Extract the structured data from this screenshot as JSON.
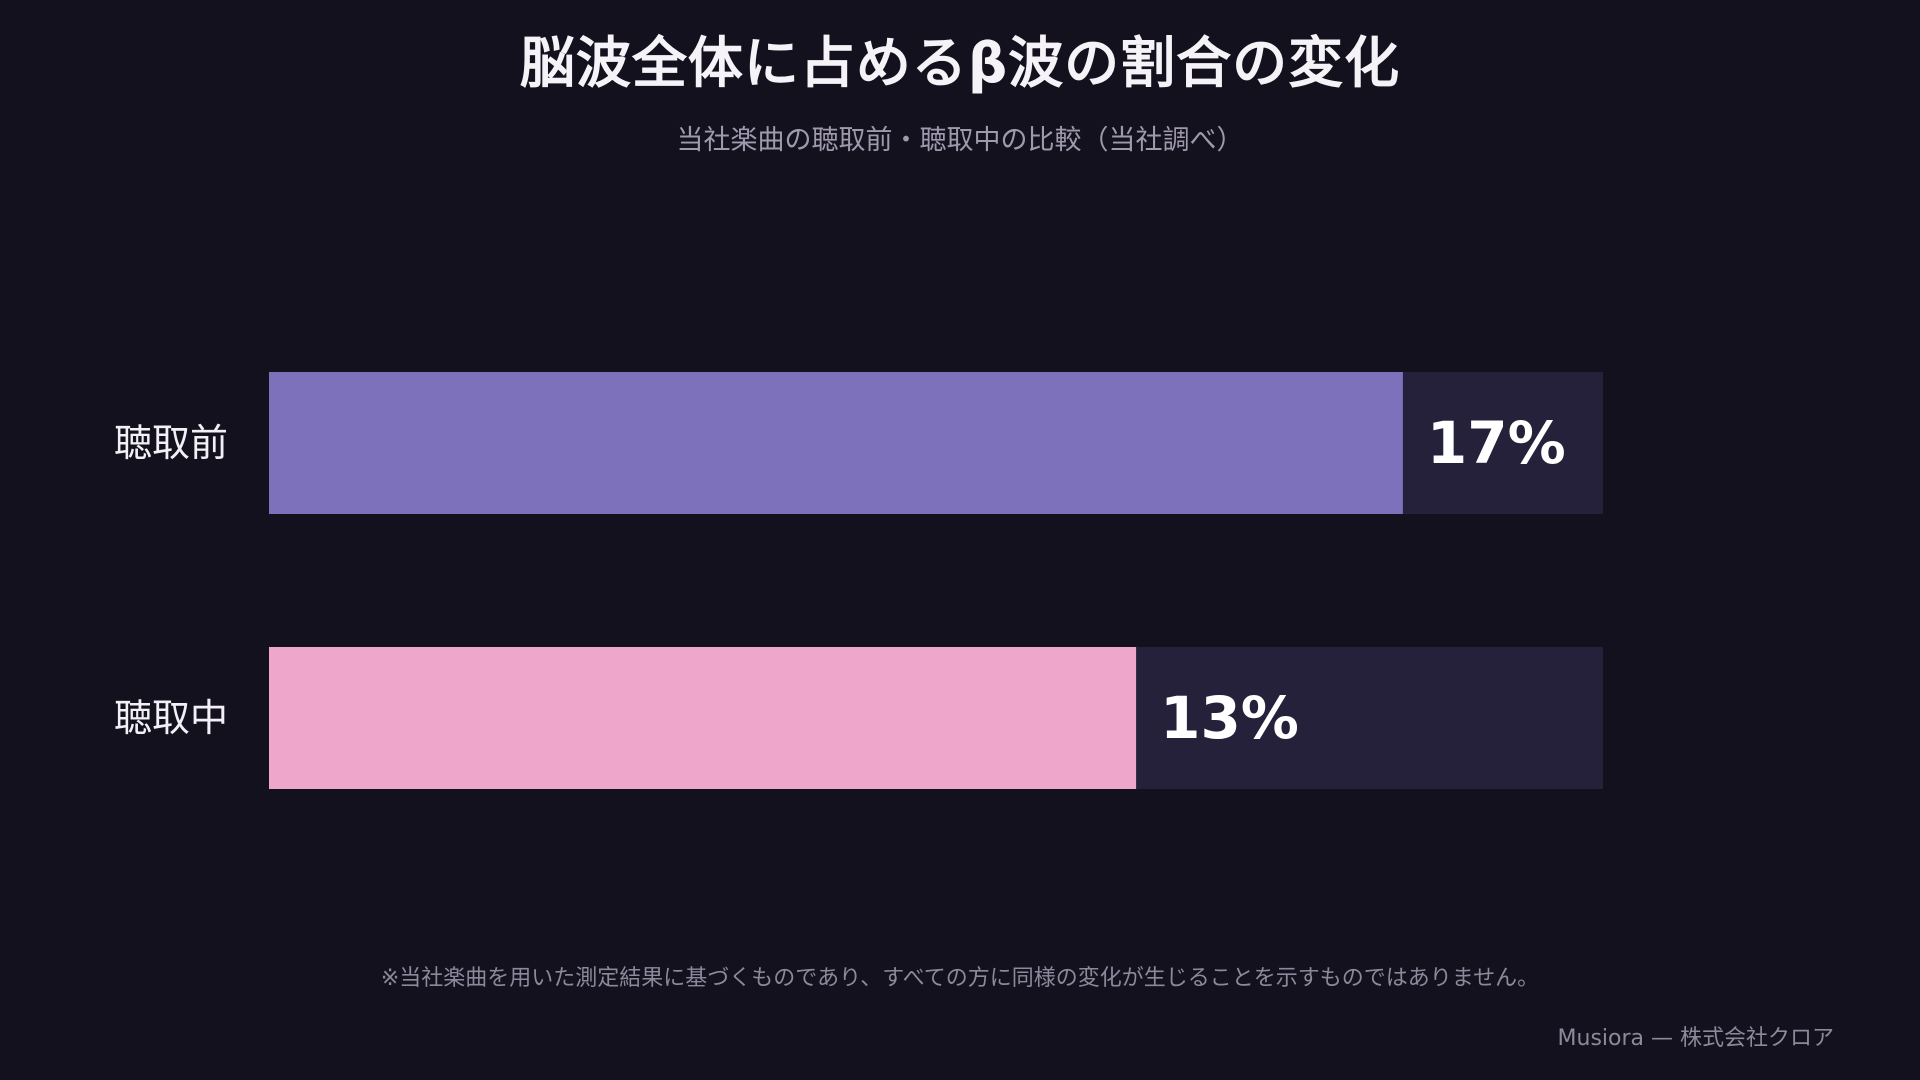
{
  "chart_data": {
    "type": "bar",
    "orientation": "horizontal",
    "title": "脳波全体に占めるβ波の割合の変化",
    "subtitle": "当社楽曲の聴取前・聴取中の比較（当社調べ）",
    "categories": [
      "聴取前",
      "聴取中"
    ],
    "values": [
      17,
      13
    ],
    "value_labels": [
      "17%",
      "13%"
    ],
    "colors": [
      "#7d71bb",
      "#efa6cb"
    ],
    "track_color": "#25213a",
    "xlim": [
      0,
      20
    ],
    "grid": false
  },
  "footnote": "※当社楽曲を用いた測定結果に基づくものであり、すべての方に同様の変化が生じることを示すものではありません。",
  "credit": "Musiora — 株式会社クロア"
}
